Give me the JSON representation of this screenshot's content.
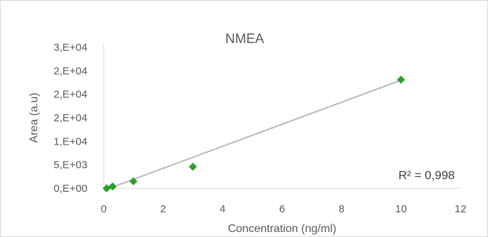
{
  "chart_data": {
    "type": "scatter",
    "title": "NMEA",
    "xlabel": "Concentration (ng/ml)",
    "ylabel": "Area (a.u)",
    "xlim": [
      0,
      12
    ],
    "ylim": [
      0,
      30000
    ],
    "x_ticks": [
      0,
      2,
      4,
      6,
      8,
      10,
      12
    ],
    "x_tick_labels": [
      "0",
      "2",
      "4",
      "6",
      "8",
      "10",
      "12"
    ],
    "y_ticks": [
      0,
      5000,
      10000,
      15000,
      20000,
      25000,
      30000
    ],
    "y_tick_labels": [
      "0,E+00",
      "5,E+03",
      "1,E+04",
      "2,E+04",
      "2,E+04",
      "2,E+04",
      "3,E+04"
    ],
    "grid": false,
    "series": [
      {
        "marker": "diamond",
        "color": "#2ca02c",
        "x": [
          0.1,
          0.3,
          1,
          3,
          10
        ],
        "y": [
          0,
          400,
          1500,
          4600,
          23100
        ]
      }
    ],
    "trendline": {
      "type": "linear",
      "color": "#bfbfbf",
      "x": [
        0.1,
        10
      ],
      "y": [
        -200,
        23000
      ]
    },
    "annotations": [
      {
        "text": "R² = 0,998"
      }
    ]
  }
}
